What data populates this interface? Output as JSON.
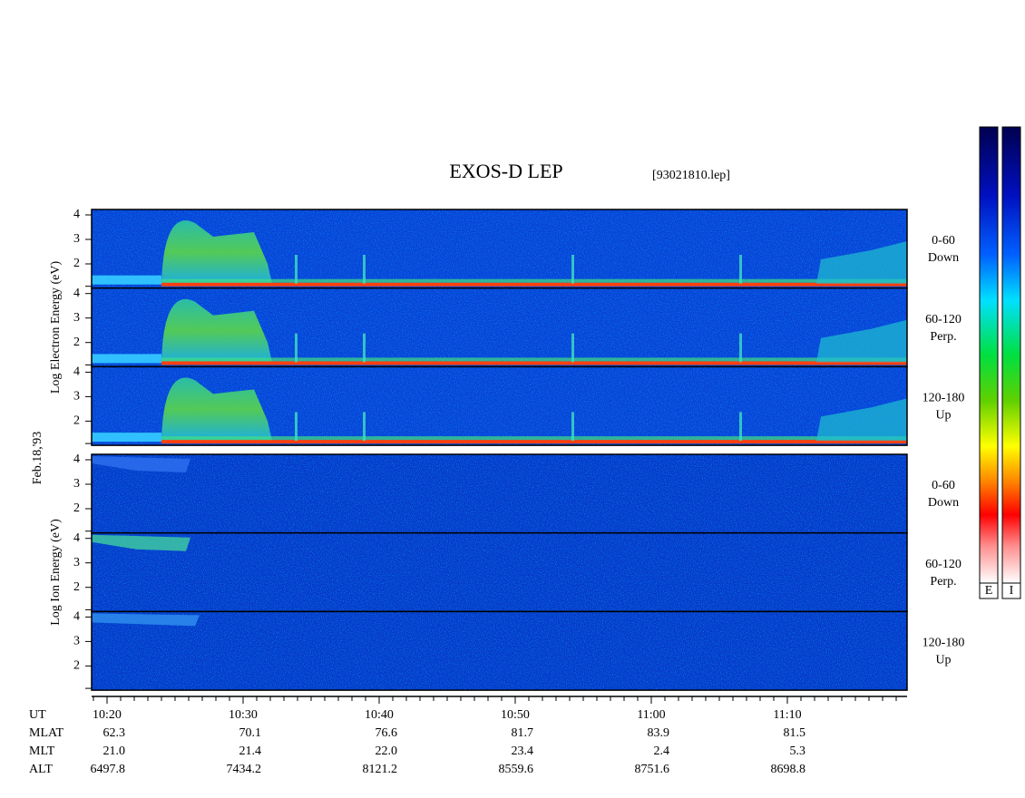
{
  "title": "EXOS-D LEP",
  "file": "[93021810.lep]",
  "date_label": "Feb.18,'93",
  "y_ticks": [
    "4",
    "3",
    "2"
  ],
  "groups": [
    {
      "y_label": "Log  Electron  Energy (eV)",
      "panels": [
        {
          "angle": "0-60",
          "direction": "Down"
        },
        {
          "angle": "60-120",
          "direction": "Perp."
        },
        {
          "angle": "120-180",
          "direction": "Up"
        }
      ]
    },
    {
      "y_label": "Log  Ion  Energy (eV)",
      "panels": [
        {
          "angle": "0-60",
          "direction": "Down"
        },
        {
          "angle": "60-120",
          "direction": "Perp."
        },
        {
          "angle": "120-180",
          "direction": "Up"
        }
      ]
    }
  ],
  "ephemeris": [
    {
      "name": "UT",
      "values": [
        "10:20",
        "10:30",
        "10:40",
        "10:50",
        "11:00",
        "11:10"
      ]
    },
    {
      "name": "MLAT",
      "values": [
        "62.3",
        "70.1",
        "76.6",
        "81.7",
        "83.9",
        "81.5"
      ]
    },
    {
      "name": "MLT",
      "values": [
        "21.0",
        "21.4",
        "22.0",
        "23.4",
        "2.4",
        "5.3"
      ]
    },
    {
      "name": "ALT",
      "values": [
        "6497.8",
        "7434.2",
        "8121.2",
        "8559.6",
        "8751.6",
        "8698.8"
      ]
    }
  ],
  "colorbars": [
    "E",
    "I"
  ]
}
